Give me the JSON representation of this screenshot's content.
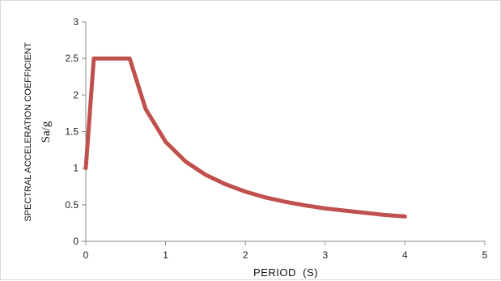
{
  "chart_data": {
    "type": "line",
    "title": "",
    "xlabel": "PERIOD  (S)",
    "ylabel": "SPECTRAL ACCELERATION COEFFICIENT",
    "ylabel_sub": "Sa/g",
    "xlim": [
      0,
      5
    ],
    "ylim": [
      0,
      3
    ],
    "x_ticks": [
      "0",
      "1",
      "2",
      "3",
      "4",
      "5"
    ],
    "y_ticks": [
      "0",
      "0.5",
      "1",
      "1.5",
      "2",
      "2.5",
      "3"
    ],
    "grid": false,
    "legend": "none",
    "series": [
      {
        "x": [
          0,
          0.1,
          0.55,
          0.75,
          1.0,
          1.25,
          1.5,
          1.75,
          2.0,
          2.25,
          2.5,
          2.75,
          3.0,
          3.25,
          3.5,
          3.75,
          4.0
        ],
        "y": [
          1.0,
          2.5,
          2.5,
          1.81,
          1.36,
          1.09,
          0.91,
          0.78,
          0.68,
          0.6,
          0.54,
          0.49,
          0.45,
          0.42,
          0.39,
          0.36,
          0.34
        ],
        "color": "#c0504d"
      }
    ]
  }
}
